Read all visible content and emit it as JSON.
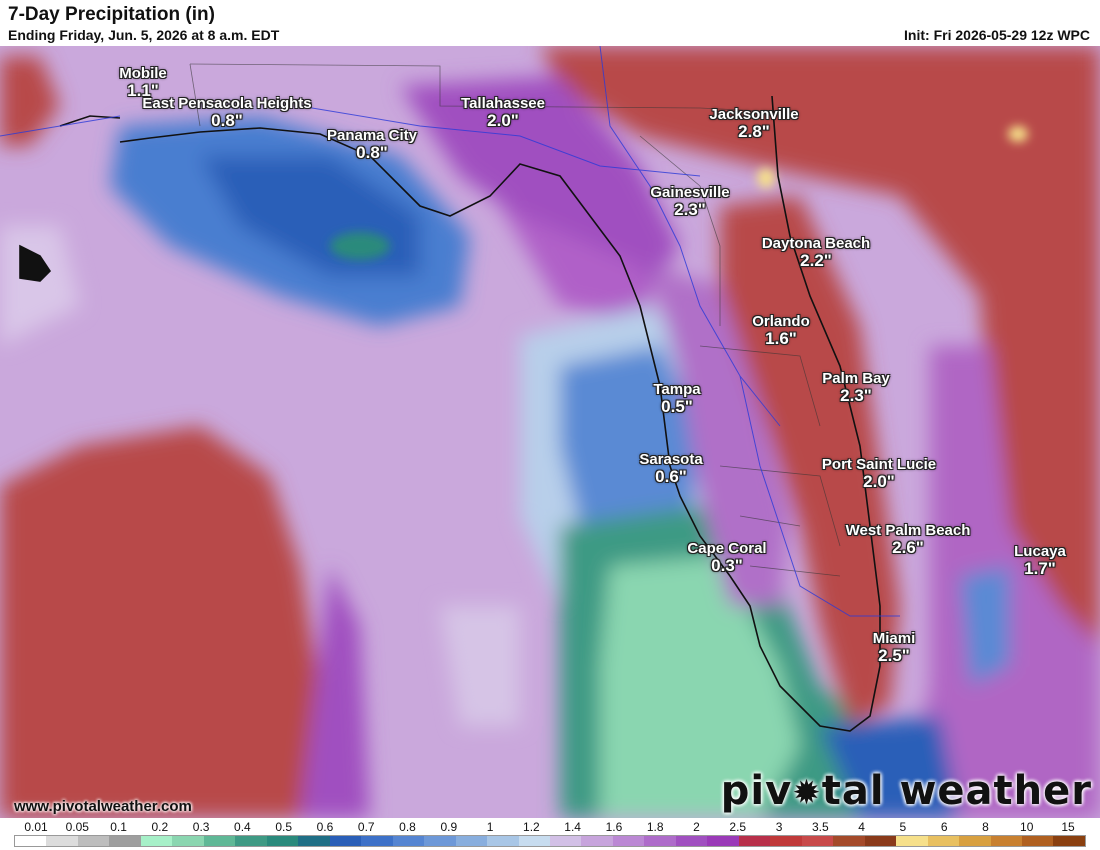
{
  "header": {
    "title": "7-Day Precipitation (in)",
    "subtitle": "Ending Friday, Jun. 5, 2026 at 8 a.m. EDT",
    "init": "Init: Fri 2026-05-29 12z WPC"
  },
  "cities": [
    {
      "name": "Mobile",
      "value": "1.1\""
    },
    {
      "name": "East Pensacola Heights",
      "value": "0.8\""
    },
    {
      "name": "Panama City",
      "value": "0.8\""
    },
    {
      "name": "Tallahassee",
      "value": "2.0\""
    },
    {
      "name": "Jacksonville",
      "value": "2.8\""
    },
    {
      "name": "Gainesville",
      "value": "2.3\""
    },
    {
      "name": "Daytona Beach",
      "value": "2.2\""
    },
    {
      "name": "Orlando",
      "value": "1.6\""
    },
    {
      "name": "Palm Bay",
      "value": "2.3\""
    },
    {
      "name": "Tampa",
      "value": "0.5\""
    },
    {
      "name": "Sarasota",
      "value": "0.6\""
    },
    {
      "name": "Port Saint Lucie",
      "value": "2.0\""
    },
    {
      "name": "West Palm Beach",
      "value": "2.6\""
    },
    {
      "name": "Cape Coral",
      "value": "0.3\""
    },
    {
      "name": "Lucaya",
      "value": "1.7\""
    },
    {
      "name": "Miami",
      "value": "2.5\""
    }
  ],
  "footer": {
    "website": "www.pivotalweather.com",
    "brand_pre": "piv",
    "brand_post": "tal weather"
  },
  "legend": {
    "ticks": [
      "0.01",
      "0.05",
      "0.1",
      "0.2",
      "0.3",
      "0.4",
      "0.5",
      "0.6",
      "0.7",
      "0.8",
      "0.9",
      "1",
      "1.2",
      "1.4",
      "1.6",
      "1.8",
      "2",
      "2.5",
      "3",
      "3.5",
      "4",
      "5",
      "6",
      "8",
      "10",
      "15"
    ],
    "colors": [
      "#ffffff",
      "#dcdcdc",
      "#bdbdbd",
      "#9e9e9e",
      "#a6f0c8",
      "#8ad6b0",
      "#5fb896",
      "#3e9a84",
      "#2a8a7c",
      "#1f6f86",
      "#2a5fb8",
      "#3d71c8",
      "#5585d2",
      "#6d98d8",
      "#88aede",
      "#a8c6e6",
      "#c7dcef",
      "#d2c0e6",
      "#c7a4dc",
      "#bb88d4",
      "#ae6cca",
      "#a050c0",
      "#9a3ab8",
      "#b8304a",
      "#c03a3a",
      "#c84a4a",
      "#a44a2a",
      "#8a3a1a",
      "#f6e08a",
      "#e8c060",
      "#d8a040",
      "#c88030",
      "#b06020",
      "#8a4010"
    ],
    "accent_red": "#c05050",
    "accent_purple": "#b060c0",
    "accent_blue": "#3a6ec0",
    "accent_green": "#5fb896"
  }
}
